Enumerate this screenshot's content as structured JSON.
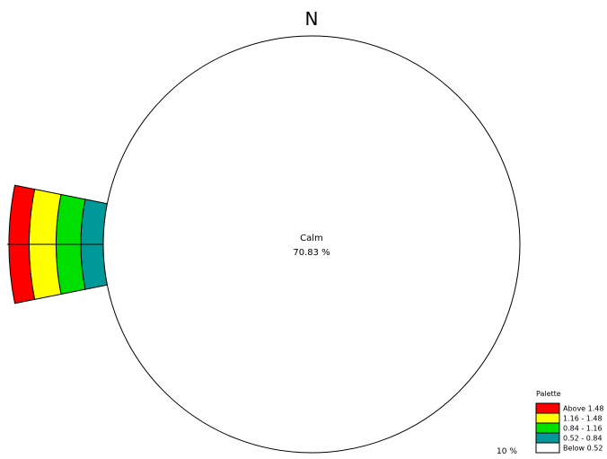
{
  "chart_data": {
    "type": "wind_rose",
    "north_label": "N",
    "calm": {
      "label": "Calm",
      "value_text": "70.83 %",
      "value": 70.83
    },
    "scale_label": "10 %",
    "legend": {
      "title": "Palette",
      "items": [
        {
          "label": "Above 1.48",
          "color": "#ff0000"
        },
        {
          "label": "1.16 - 1.48",
          "color": "#ffff00"
        },
        {
          "label": "0.84 - 1.16",
          "color": "#00e000"
        },
        {
          "label": "0.52 - 0.84",
          "color": "#009999"
        },
        {
          "label": "Below 0.52",
          "color": "#ffffff"
        }
      ]
    },
    "petals": [
      {
        "direction": "W",
        "angle_deg": 270,
        "sector_width_deg": 22.5,
        "segments": [
          {
            "class": "Below 0.52",
            "color": "#ffffff",
            "value": 0
          },
          {
            "class": "0.52 - 0.84",
            "color": "#009999",
            "value": 1.0
          },
          {
            "class": "0.84 - 1.16",
            "color": "#00e000",
            "value": 1.1
          },
          {
            "class": "1.16 - 1.48",
            "color": "#ffff00",
            "value": 1.2
          },
          {
            "class": "Above 1.48",
            "color": "#ff0000",
            "value": 0.9
          }
        ]
      }
    ]
  }
}
